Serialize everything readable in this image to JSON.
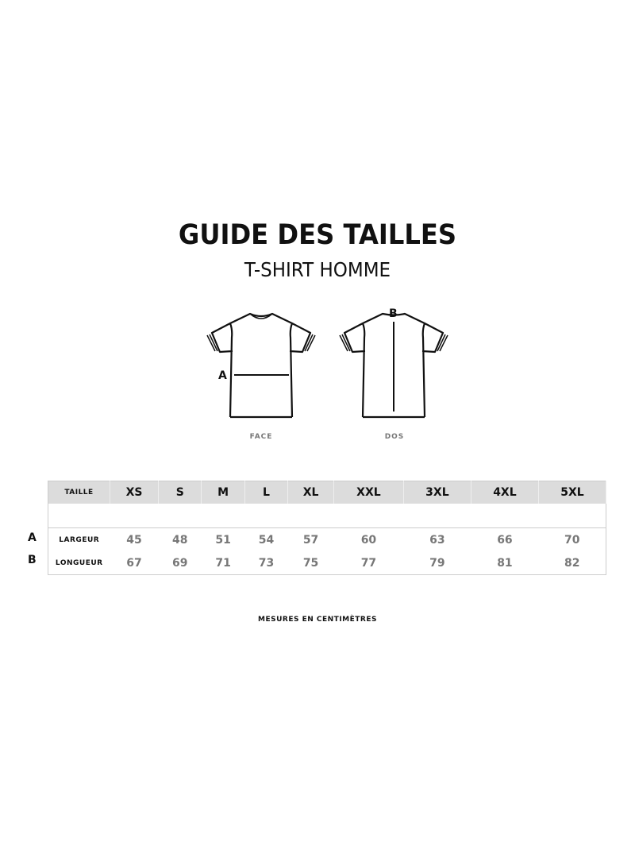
{
  "title": "GUIDE DES TAILLES",
  "subtitle": "T-SHIRT HOMME",
  "diagrams": {
    "front": {
      "caption": "FACE",
      "marker": "A"
    },
    "back": {
      "caption": "DOS",
      "marker": "B"
    }
  },
  "table": {
    "header_label": "TAILLE",
    "sizes": [
      "XS",
      "S",
      "M",
      "L",
      "XL",
      "XXL",
      "3XL",
      "4XL",
      "5XL"
    ],
    "rows": [
      {
        "letter": "A",
        "label": "LARGEUR",
        "values": [
          "45",
          "48",
          "51",
          "54",
          "57",
          "60",
          "63",
          "66",
          "70"
        ]
      },
      {
        "letter": "B",
        "label": "LONGUEUR",
        "values": [
          "67",
          "69",
          "71",
          "73",
          "75",
          "77",
          "79",
          "81",
          "82"
        ]
      }
    ]
  },
  "footnote": "MESURES EN CENTIMÈTRES"
}
